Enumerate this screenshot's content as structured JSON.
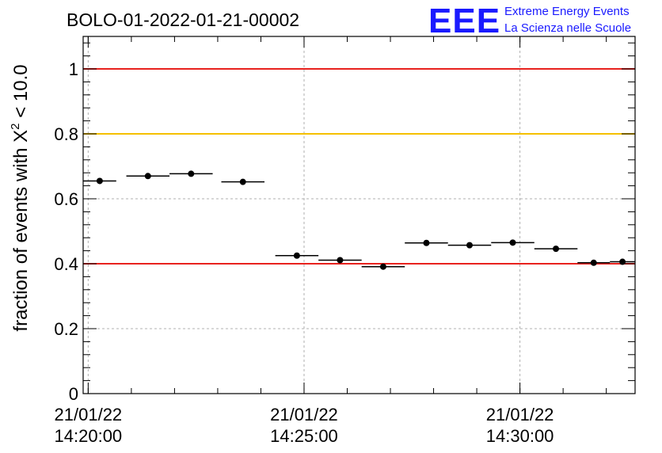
{
  "chart_data": {
    "type": "scatter",
    "title": "BOLO-01-2022-01-21-00002",
    "xlabel": "",
    "ylabel_parts": {
      "prefix": "fraction of events with ",
      "chi": "X",
      "sup": "2",
      "suffix": " < 10.0"
    },
    "ylim": [
      0,
      1.1
    ],
    "xlim": [
      "2022-01-21 14:19:53",
      "2022-01-21 14:32:40"
    ],
    "grid": true,
    "yticks": [
      "0",
      "0.2",
      "0.4",
      "0.6",
      "0.8",
      "1"
    ],
    "xtick_labels": [
      {
        "time": "2022-01-21 14:20:00",
        "date": "21/01/22",
        "clock": "14:20:00"
      },
      {
        "time": "2022-01-21 14:25:00",
        "date": "21/01/22",
        "clock": "14:25:00"
      },
      {
        "time": "2022-01-21 14:30:00",
        "date": "21/01/22",
        "clock": "14:30:00"
      }
    ],
    "reference_lines": [
      {
        "y": 1.0,
        "color": "#e8221e"
      },
      {
        "y": 0.8,
        "color": "#f5c000"
      },
      {
        "y": 0.4,
        "color": "#e8221e"
      }
    ],
    "series": [
      {
        "points": [
          {
            "x_start": "2022-01-21 14:19:53",
            "x_end": "2022-01-21 14:20:39",
            "y": 0.655
          },
          {
            "x_start": "2022-01-21 14:20:53",
            "x_end": "2022-01-21 14:21:53",
            "y": 0.67
          },
          {
            "x_start": "2022-01-21 14:21:53",
            "x_end": "2022-01-21 14:22:53",
            "y": 0.677
          },
          {
            "x_start": "2022-01-21 14:23:05",
            "x_end": "2022-01-21 14:24:05",
            "y": 0.652
          },
          {
            "x_start": "2022-01-21 14:24:20",
            "x_end": "2022-01-21 14:25:20",
            "y": 0.425
          },
          {
            "x_start": "2022-01-21 14:25:20",
            "x_end": "2022-01-21 14:26:20",
            "y": 0.411
          },
          {
            "x_start": "2022-01-21 14:26:20",
            "x_end": "2022-01-21 14:27:20",
            "y": 0.391
          },
          {
            "x_start": "2022-01-21 14:27:20",
            "x_end": "2022-01-21 14:28:20",
            "y": 0.464
          },
          {
            "x_start": "2022-01-21 14:28:20",
            "x_end": "2022-01-21 14:29:20",
            "y": 0.457
          },
          {
            "x_start": "2022-01-21 14:29:20",
            "x_end": "2022-01-21 14:30:20",
            "y": 0.465
          },
          {
            "x_start": "2022-01-21 14:30:20",
            "x_end": "2022-01-21 14:31:20",
            "y": 0.446
          },
          {
            "x_start": "2022-01-21 14:31:20",
            "x_end": "2022-01-21 14:32:05",
            "y": 0.403
          },
          {
            "x_start": "2022-01-21 14:32:05",
            "x_end": "2022-01-21 14:32:40",
            "y": 0.406
          }
        ]
      }
    ]
  },
  "logo": {
    "text": "EEE",
    "line1": "Extreme Energy Events",
    "line2": "La Scienza nelle Scuole",
    "color": "#1a1aff"
  }
}
